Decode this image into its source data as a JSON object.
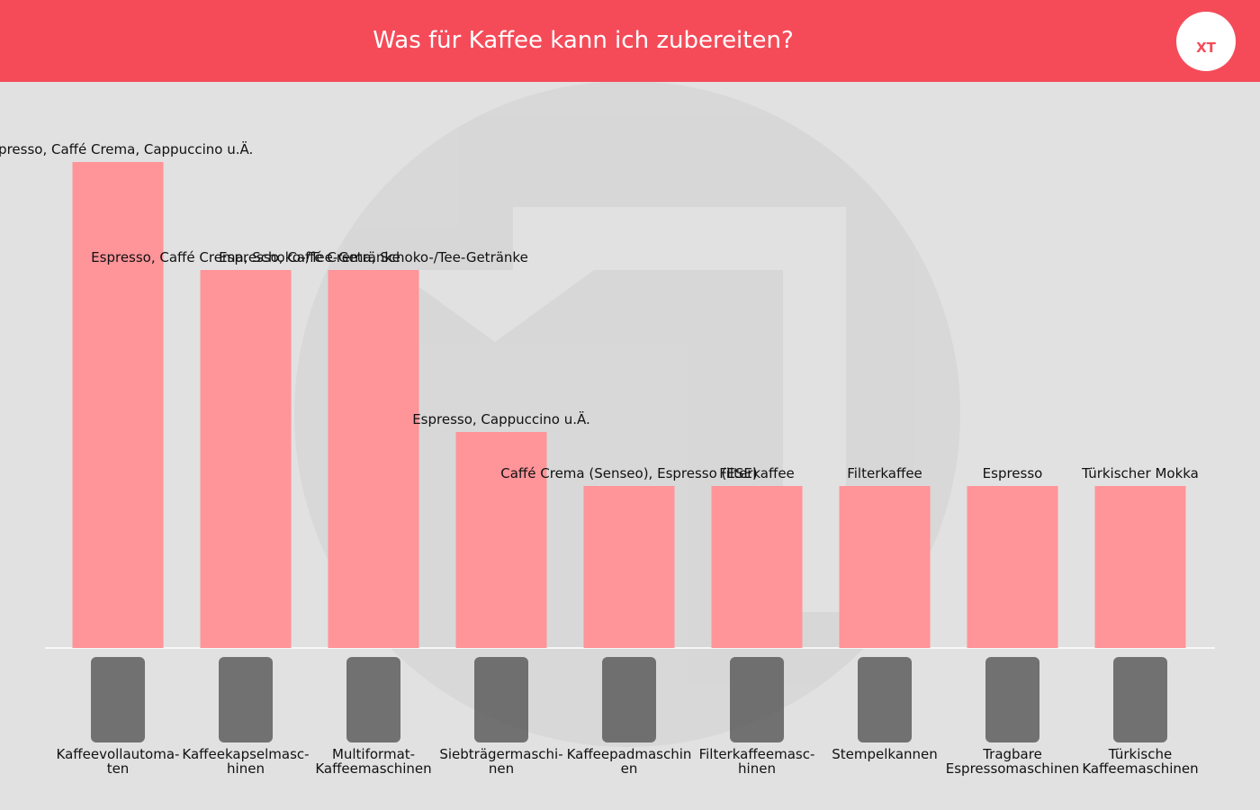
{
  "title": "Was für Kaffee kann ich zubereiten?",
  "chart_data": {
    "type": "bar",
    "color": "#ff9499",
    "categories": [
      "Kaffeevollautoma-\nten",
      "Kaffeekapselmasc-\nhinen",
      "Multiformat-\nKaffeemaschinen",
      "Siebträgermaschi-\nnen",
      "Kaffeepadmaschin\nen",
      "Filterkaffeemasc-\nhinen",
      "Stempelkannen",
      "Tragbare\nEspressomaschinen",
      "Türkische\nKaffeemaschinen"
    ],
    "values": [
      9,
      7,
      7,
      4,
      3,
      3,
      3,
      3,
      3
    ],
    "bar_labels": [
      "Espresso, Caffé Crema, Cappuccino u.Ä.",
      "Espresso, Caffé Crema, Schoko-/Tee-Getränke",
      "Espresso, Caffé Crema, Schoko-/Tee-Getränke",
      "Espresso, Cappuccino u.Ä.",
      "Caffé Crema (Senseo), Espresso (ESE)",
      "Filterkaffee",
      "Filterkaffee",
      "Espresso",
      "Türkischer Mokka"
    ]
  }
}
